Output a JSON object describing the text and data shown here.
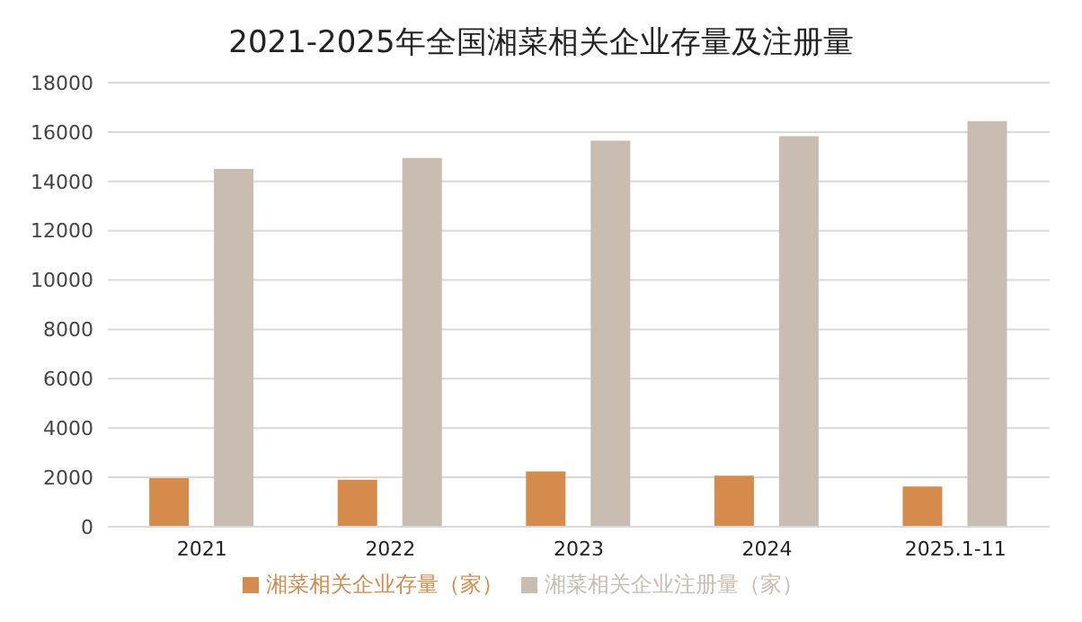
{
  "chart_data": {
    "type": "bar",
    "title": "2021-2025年全国湘菜相关企业存量及注册量",
    "categories": [
      "2021",
      "2022",
      "2023",
      "2024",
      "2025.1-11"
    ],
    "series": [
      {
        "name": "湘菜相关企业存量（家）",
        "color": "#d58b4b",
        "values": [
          1970,
          1900,
          2240,
          2070,
          1630
        ]
      },
      {
        "name": "湘菜相关企业注册量（家）",
        "color": "#c8bdb0",
        "values": [
          14500,
          14950,
          15650,
          15830,
          16440
        ]
      }
    ],
    "ylim": [
      0,
      18000
    ],
    "yticks": [
      0,
      2000,
      4000,
      6000,
      8000,
      10000,
      12000,
      14000,
      16000,
      18000
    ],
    "grid": "y",
    "legend": "bottom"
  }
}
